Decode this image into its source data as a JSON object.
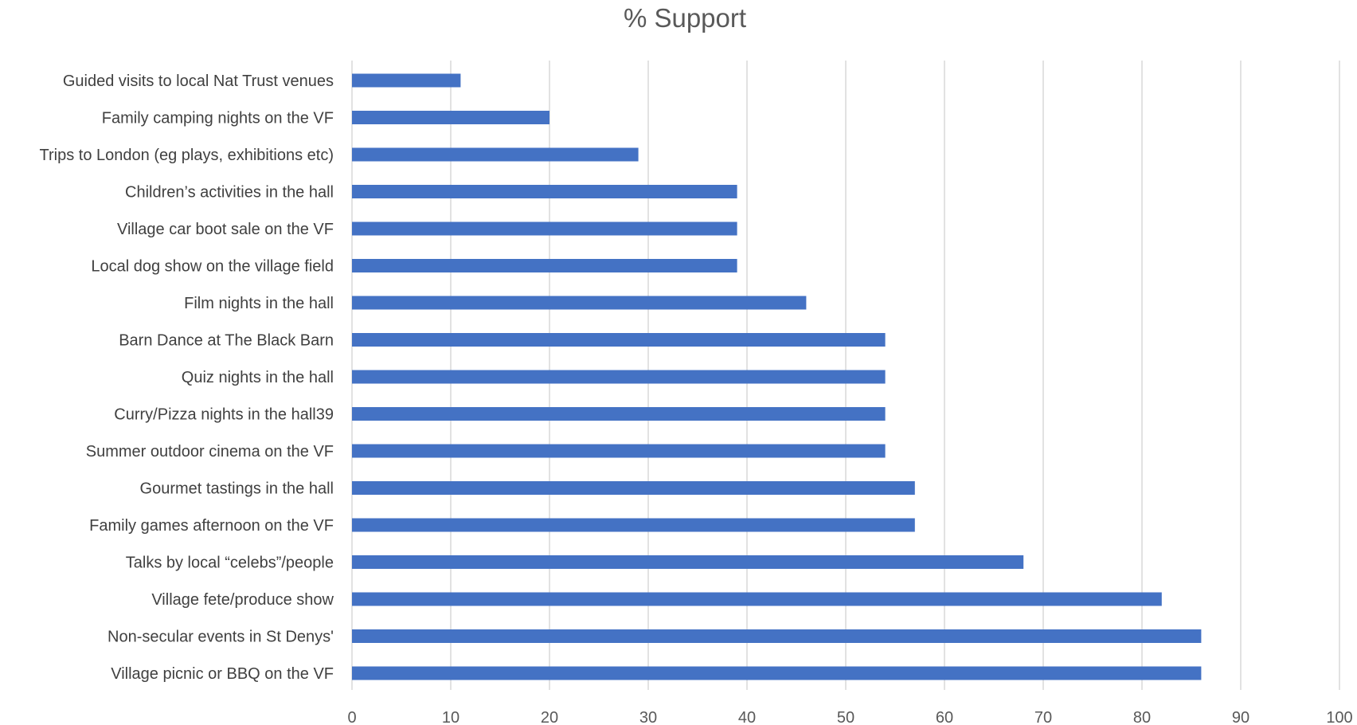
{
  "chart_data": {
    "type": "bar",
    "orientation": "horizontal",
    "title": "% Support",
    "xlabel": "",
    "ylabel": "",
    "xlim": [
      0,
      100
    ],
    "x_ticks": [
      0,
      10,
      20,
      30,
      40,
      50,
      60,
      70,
      80,
      90,
      100
    ],
    "grid": "vertical",
    "legend": "none",
    "bar_color": "#4472C4",
    "categories": [
      "Guided visits to local Nat Trust venues",
      "Family camping nights on the VF",
      "Trips to London (eg plays, exhibitions etc)",
      "Children’s activities in the hall",
      "Village car boot sale on the VF",
      "Local dog show on the village field",
      "Film nights in the hall",
      "Barn Dance at The Black Barn",
      "Quiz nights in the hall",
      "Curry/Pizza nights in the hall39",
      "Summer outdoor cinema on the VF",
      "Gourmet tastings in the hall",
      "Family games afternoon on the VF",
      "Talks by local “celebs”/people",
      "Village fete/produce show",
      "Non-secular events in St Denys'",
      "Village picnic or BBQ on the VF"
    ],
    "values": [
      11,
      20,
      29,
      39,
      39,
      39,
      46,
      54,
      54,
      54,
      54,
      57,
      57,
      68,
      82,
      86,
      86
    ]
  }
}
